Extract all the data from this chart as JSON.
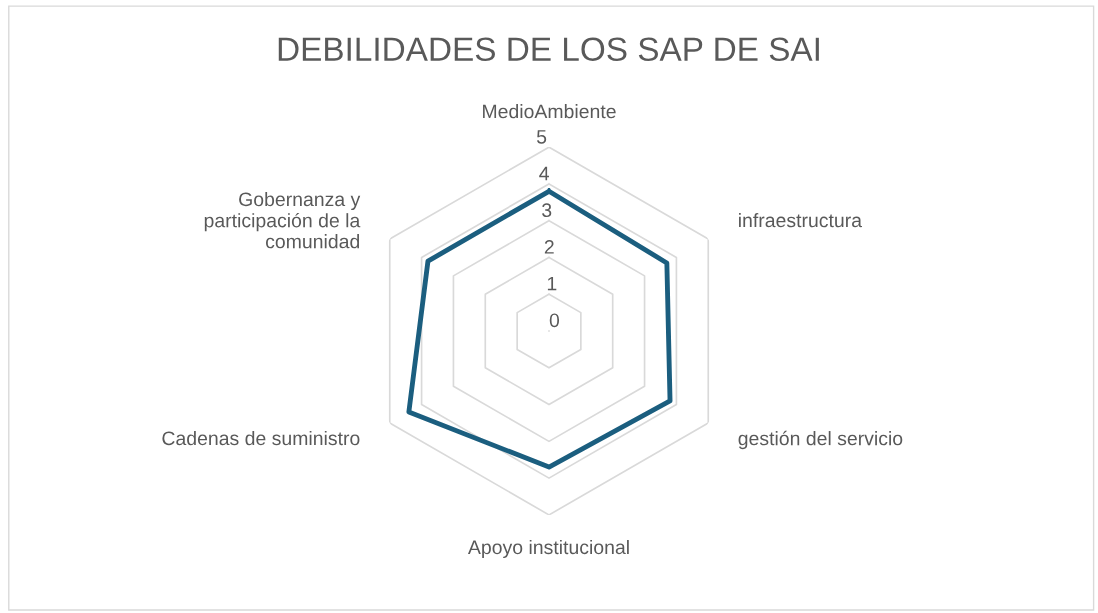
{
  "chart_data": {
    "type": "radar",
    "title": "DEBILIDADES DE LOS SAP DE SAI",
    "categories": [
      "MedioAmbiente",
      "infraestructura",
      "gestión del servicio",
      "Apoyo institucional",
      "Cadenas de suministro",
      "Gobernanza y\nparticipación de la\ncomunidad"
    ],
    "series": [
      {
        "color": "#1b5e7f",
        "values": [
          3.8,
          3.7,
          3.8,
          3.7,
          4.4,
          3.8
        ]
      }
    ],
    "ylim": [
      0,
      5
    ],
    "yticks": [
      0,
      1,
      2,
      3,
      4,
      5
    ],
    "grid": true,
    "marker": "none"
  }
}
